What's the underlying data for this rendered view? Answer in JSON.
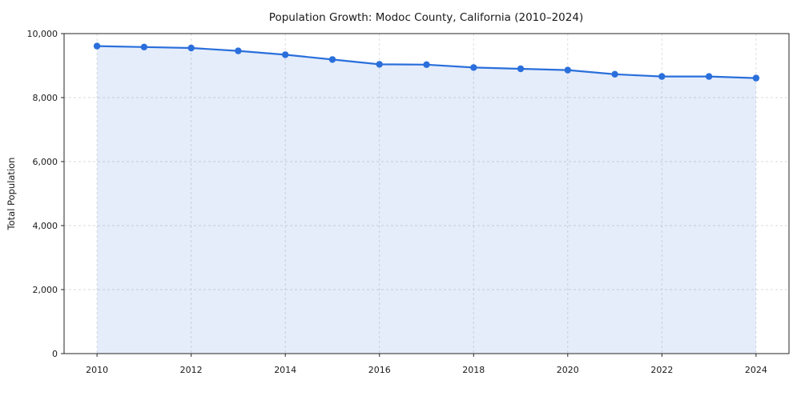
{
  "chart_data": {
    "type": "line",
    "title": "Population Growth: Modoc County, California (2010–2024)",
    "xlabel": "",
    "ylabel": "Total Population",
    "x": [
      2010,
      2011,
      2012,
      2013,
      2014,
      2015,
      2016,
      2017,
      2018,
      2019,
      2020,
      2021,
      2022,
      2023,
      2024
    ],
    "series": [
      {
        "name": "Total Population",
        "values": [
          9610,
          9580,
          9550,
          9460,
          9340,
          9190,
          9040,
          9030,
          8940,
          8900,
          8860,
          8730,
          8660,
          8660,
          8610
        ]
      }
    ],
    "ylim": [
      0,
      10000
    ],
    "xticks": [
      2010,
      2012,
      2014,
      2016,
      2018,
      2020,
      2022,
      2024
    ],
    "yticks": [
      0,
      2000,
      4000,
      6000,
      8000,
      10000
    ],
    "ytick_labels": [
      "0",
      "2,000",
      "4,000",
      "6,000",
      "8,000",
      "10,000"
    ],
    "grid": true,
    "legend": "none",
    "line_color": "#2a6fdb",
    "fill_color": "rgba(42,111,219,0.12)",
    "marker": "circle"
  }
}
